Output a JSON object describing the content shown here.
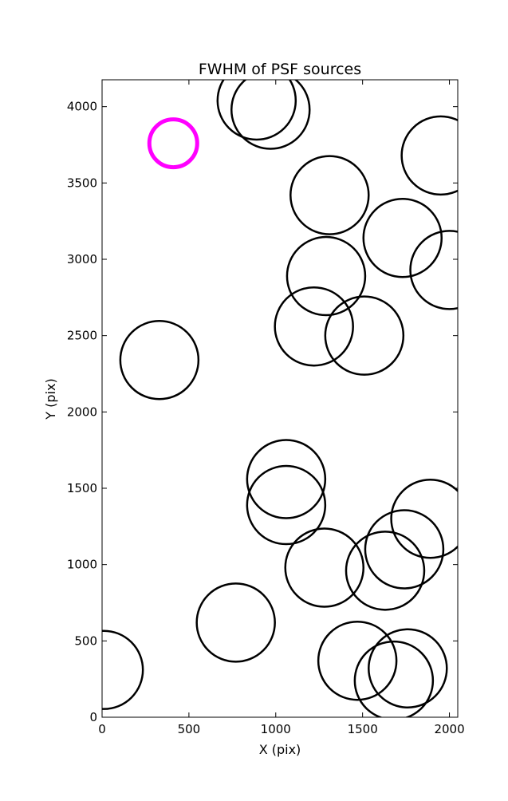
{
  "chart_data": {
    "type": "scatter",
    "title": "FWHM of PSF sources",
    "xlabel": "X (pix)",
    "ylabel": "Y (pix)",
    "xlim": [
      0,
      2048
    ],
    "ylim": [
      0,
      4176
    ],
    "xticks": [
      0,
      500,
      1000,
      1500,
      2000
    ],
    "yticks": [
      0,
      500,
      1000,
      1500,
      2000,
      2500,
      3000,
      3500,
      4000
    ],
    "grid": false,
    "legend": "none",
    "colors": {
      "source_circle": "#000000",
      "highlight_circle": "#ff00ff",
      "axes": "#000000"
    },
    "circle_radius_x_units": 225,
    "sources": [
      {
        "x": 890,
        "y": 4040
      },
      {
        "x": 970,
        "y": 3980
      },
      {
        "x": 1950,
        "y": 3680
      },
      {
        "x": 1310,
        "y": 3420
      },
      {
        "x": 1730,
        "y": 3140
      },
      {
        "x": 2000,
        "y": 2930
      },
      {
        "x": 1290,
        "y": 2890
      },
      {
        "x": 1220,
        "y": 2560
      },
      {
        "x": 1510,
        "y": 2500
      },
      {
        "x": 330,
        "y": 2340
      },
      {
        "x": 1060,
        "y": 1560
      },
      {
        "x": 1060,
        "y": 1390
      },
      {
        "x": 1890,
        "y": 1300
      },
      {
        "x": 1740,
        "y": 1100
      },
      {
        "x": 1630,
        "y": 960
      },
      {
        "x": 1280,
        "y": 980
      },
      {
        "x": 770,
        "y": 620
      },
      {
        "x": 10,
        "y": 310
      },
      {
        "x": 1470,
        "y": 370
      },
      {
        "x": 1760,
        "y": 320
      },
      {
        "x": 1680,
        "y": 240
      }
    ],
    "highlight": {
      "x": 410,
      "y": 3760
    }
  }
}
